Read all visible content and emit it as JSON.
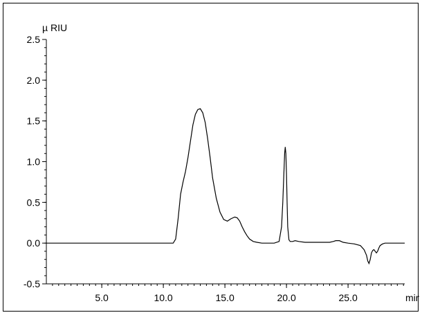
{
  "chart_data": {
    "type": "line",
    "title": "",
    "xlabel": "min",
    "ylabel": "µ RIU",
    "xlim": [
      0.5,
      29.6
    ],
    "ylim": [
      -0.5,
      2.5
    ],
    "x_ticks": [
      5.0,
      10.0,
      15.0,
      20.0,
      25.0
    ],
    "x_tick_labels": [
      "5.0",
      "10.0",
      "15.0",
      "20.0",
      "25.0"
    ],
    "y_ticks": [
      2.5,
      2.0,
      1.5,
      1.0,
      0.5,
      0.0,
      -0.5
    ],
    "y_tick_labels": [
      "2.5",
      "2.0",
      "1.5",
      "1.0",
      "0.5",
      "0.0",
      "-0.5"
    ],
    "grid": false,
    "series": [
      {
        "color": "#000000",
        "x": [
          0.5,
          5.0,
          10.0,
          10.8,
          11.0,
          11.2,
          11.4,
          11.6,
          11.8,
          12.0,
          12.2,
          12.4,
          12.6,
          12.8,
          13.0,
          13.2,
          13.4,
          13.6,
          13.8,
          14.0,
          14.3,
          14.6,
          14.9,
          15.2,
          15.5,
          15.8,
          16.0,
          16.2,
          16.4,
          16.6,
          16.8,
          17.0,
          17.3,
          17.6,
          18.0,
          18.5,
          19.0,
          19.4,
          19.6,
          19.7,
          19.8,
          19.85,
          19.9,
          19.95,
          20.0,
          20.05,
          20.1,
          20.2,
          20.3,
          20.5,
          20.7,
          21.0,
          21.5,
          22.0,
          23.0,
          23.5,
          23.8,
          24.0,
          24.3,
          24.6,
          25.0,
          25.5,
          26.0,
          26.3,
          26.5,
          26.6,
          26.7,
          26.8,
          26.9,
          27.0,
          27.1,
          27.2,
          27.3,
          27.4,
          27.5,
          27.6,
          27.8,
          28.0,
          28.5,
          29.0,
          29.6
        ],
        "y": [
          0.0,
          0.0,
          0.0,
          0.0,
          0.05,
          0.3,
          0.6,
          0.75,
          0.88,
          1.05,
          1.25,
          1.45,
          1.58,
          1.64,
          1.65,
          1.6,
          1.48,
          1.28,
          1.05,
          0.8,
          0.55,
          0.38,
          0.29,
          0.27,
          0.3,
          0.32,
          0.31,
          0.27,
          0.2,
          0.14,
          0.09,
          0.05,
          0.02,
          0.01,
          0.0,
          0.0,
          0.0,
          0.02,
          0.2,
          0.5,
          0.9,
          1.1,
          1.18,
          1.1,
          0.85,
          0.5,
          0.2,
          0.04,
          0.02,
          0.02,
          0.03,
          0.02,
          0.01,
          0.01,
          0.01,
          0.01,
          0.02,
          0.03,
          0.03,
          0.01,
          0.0,
          -0.01,
          -0.03,
          -0.08,
          -0.15,
          -0.22,
          -0.25,
          -0.2,
          -0.12,
          -0.09,
          -0.08,
          -0.1,
          -0.12,
          -0.1,
          -0.06,
          -0.03,
          -0.01,
          0.0,
          0.0,
          0.0,
          0.0
        ]
      }
    ]
  }
}
